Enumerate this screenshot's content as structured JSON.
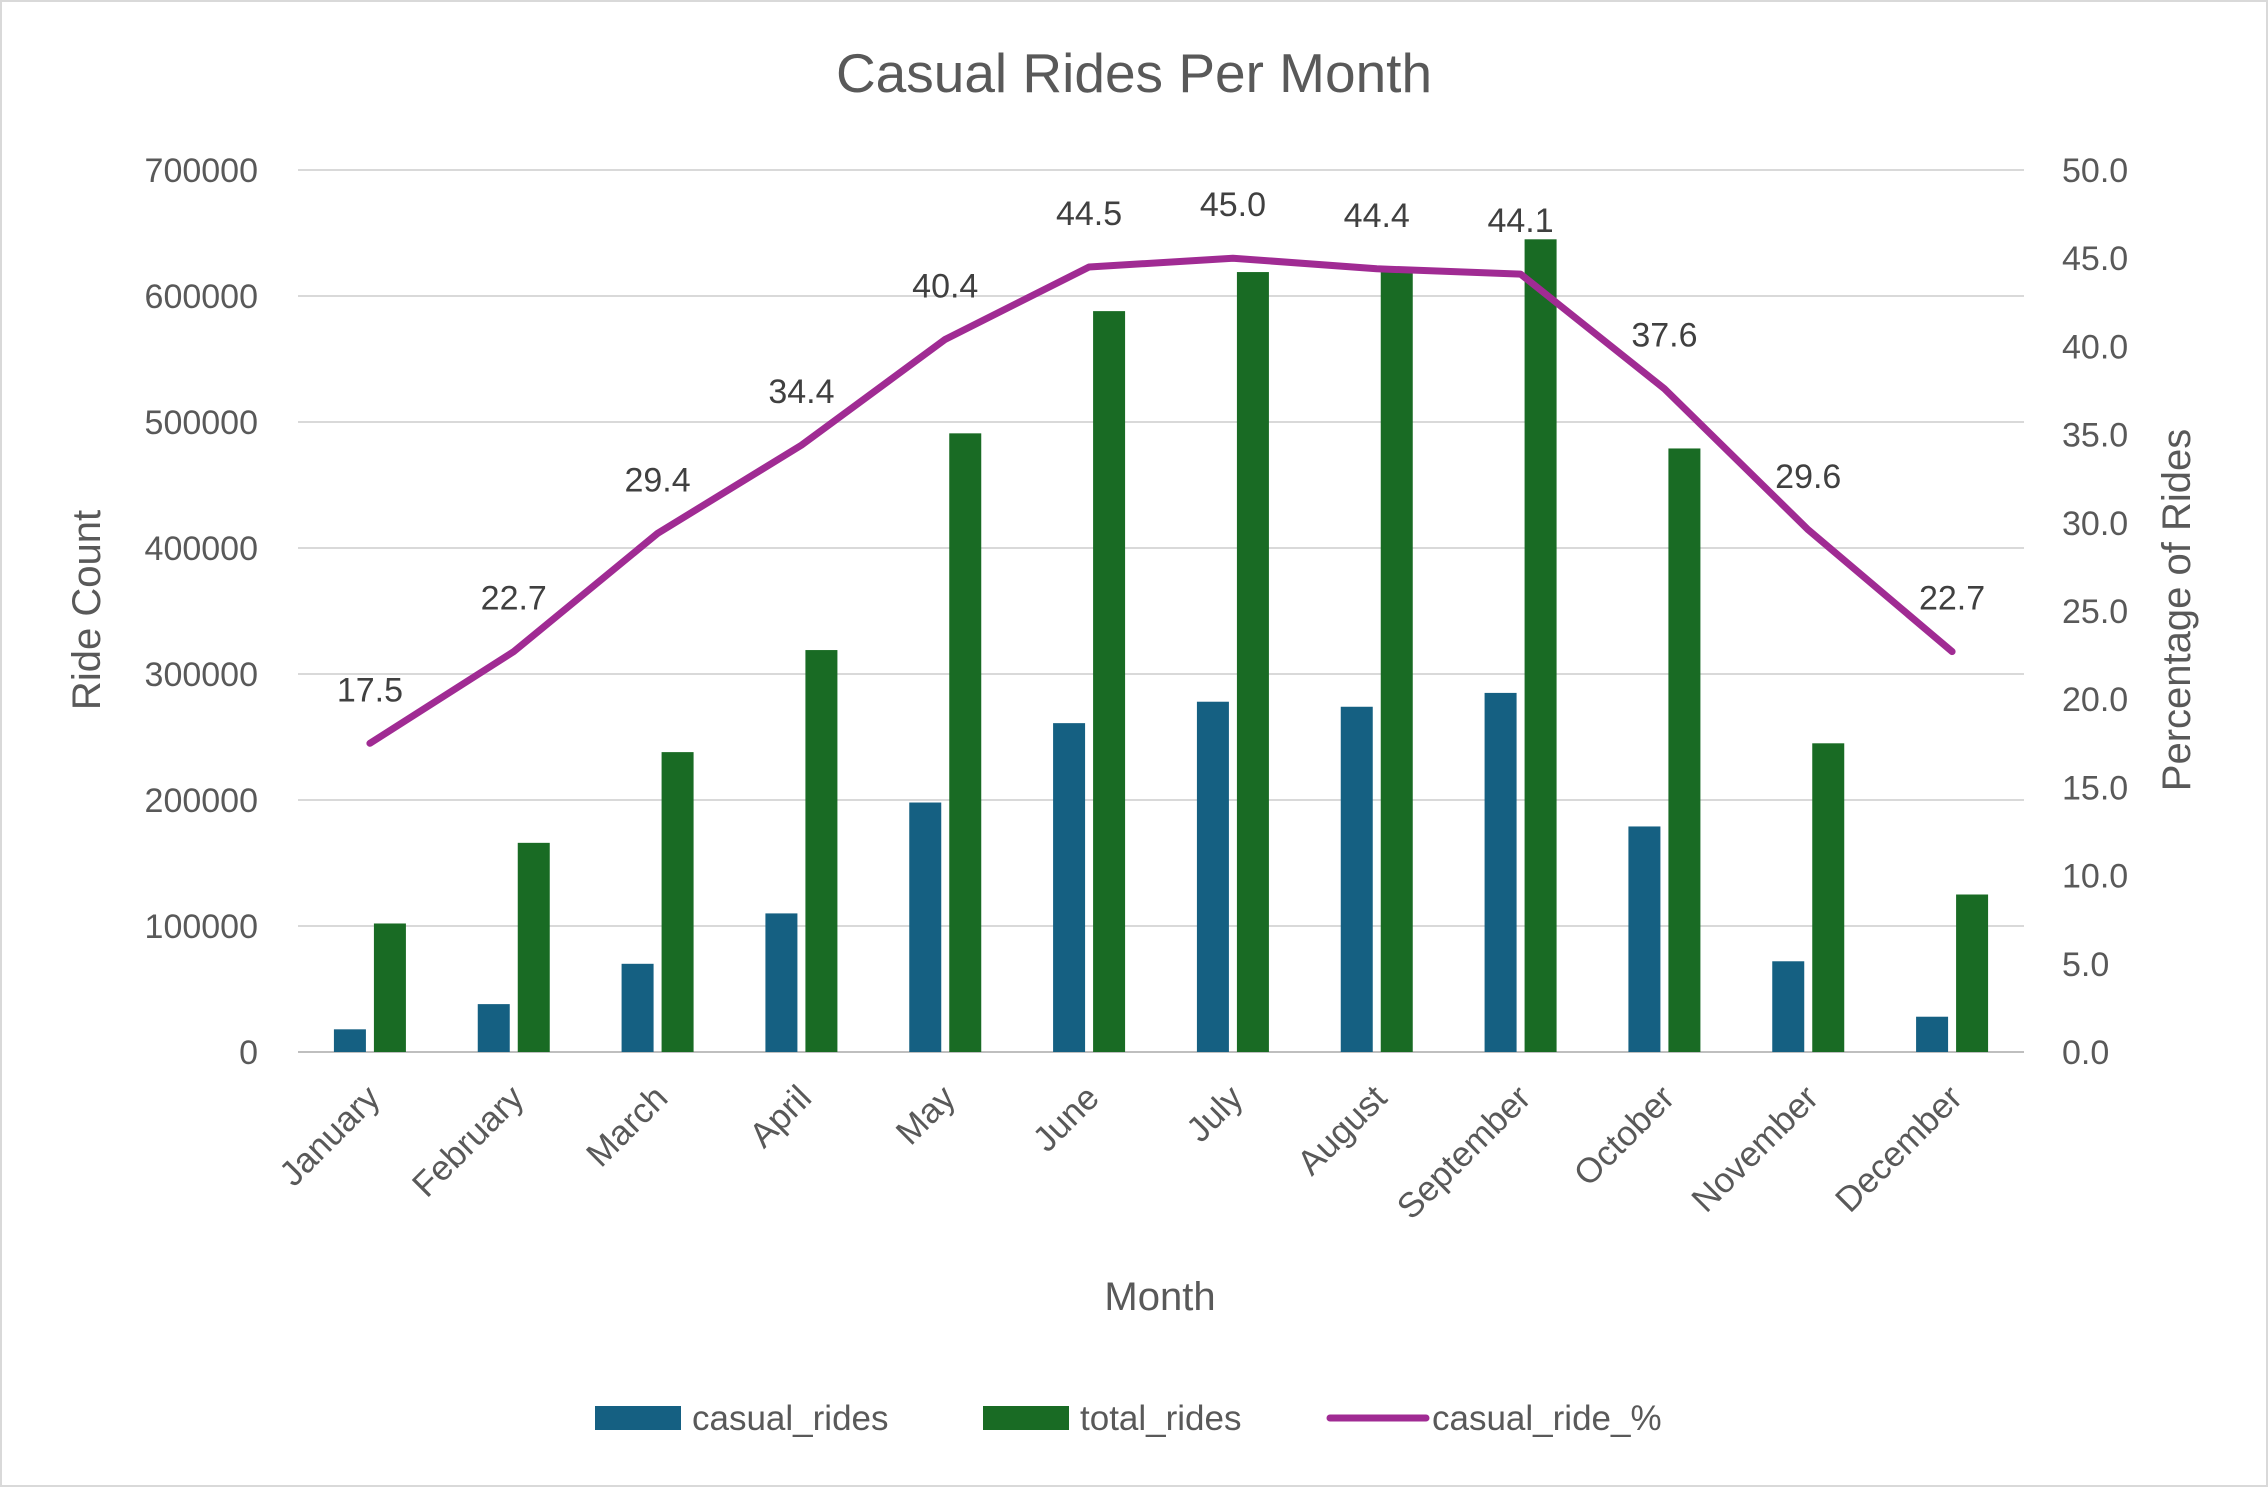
{
  "chart_data": {
    "type": "bar",
    "title": "Casual Rides Per Month",
    "xlabel": "Month",
    "ylabel": "Ride Count",
    "y2label": "Percentage of Rides",
    "categories": [
      "January",
      "February",
      "March",
      "April",
      "May",
      "June",
      "July",
      "August",
      "September",
      "October",
      "November",
      "December"
    ],
    "ylim": [
      0,
      700000
    ],
    "y_ticks": [
      "0",
      "100000",
      "200000",
      "300000",
      "400000",
      "500000",
      "600000",
      "700000"
    ],
    "y2lim": [
      0,
      50
    ],
    "y2_ticks": [
      "0.0",
      "5.0",
      "10.0",
      "15.0",
      "20.0",
      "25.0",
      "30.0",
      "35.0",
      "40.0",
      "45.0",
      "50.0"
    ],
    "grid": true,
    "legend_position": "bottom",
    "series": [
      {
        "name": "casual_rides",
        "type": "bar",
        "axis": "left",
        "color": "#156082",
        "values": [
          18000,
          38000,
          70000,
          110000,
          198000,
          261000,
          278000,
          274000,
          285000,
          179000,
          72000,
          28000
        ]
      },
      {
        "name": "total_rides",
        "type": "bar",
        "axis": "left",
        "color": "#196B24",
        "values": [
          102000,
          166000,
          238000,
          319000,
          491000,
          588000,
          619000,
          621000,
          645000,
          479000,
          245000,
          125000
        ]
      },
      {
        "name": "casual_ride_%",
        "type": "line",
        "axis": "right",
        "color": "#A02B93",
        "values": [
          17.5,
          22.7,
          29.4,
          34.4,
          40.4,
          44.5,
          45.0,
          44.4,
          44.1,
          37.6,
          29.6,
          22.7
        ],
        "labels": [
          "17.5",
          "22.7",
          "29.4",
          "34.4",
          "40.4",
          "44.5",
          "45.0",
          "44.4",
          "44.1",
          "37.6",
          "29.6",
          "22.7"
        ]
      }
    ]
  }
}
